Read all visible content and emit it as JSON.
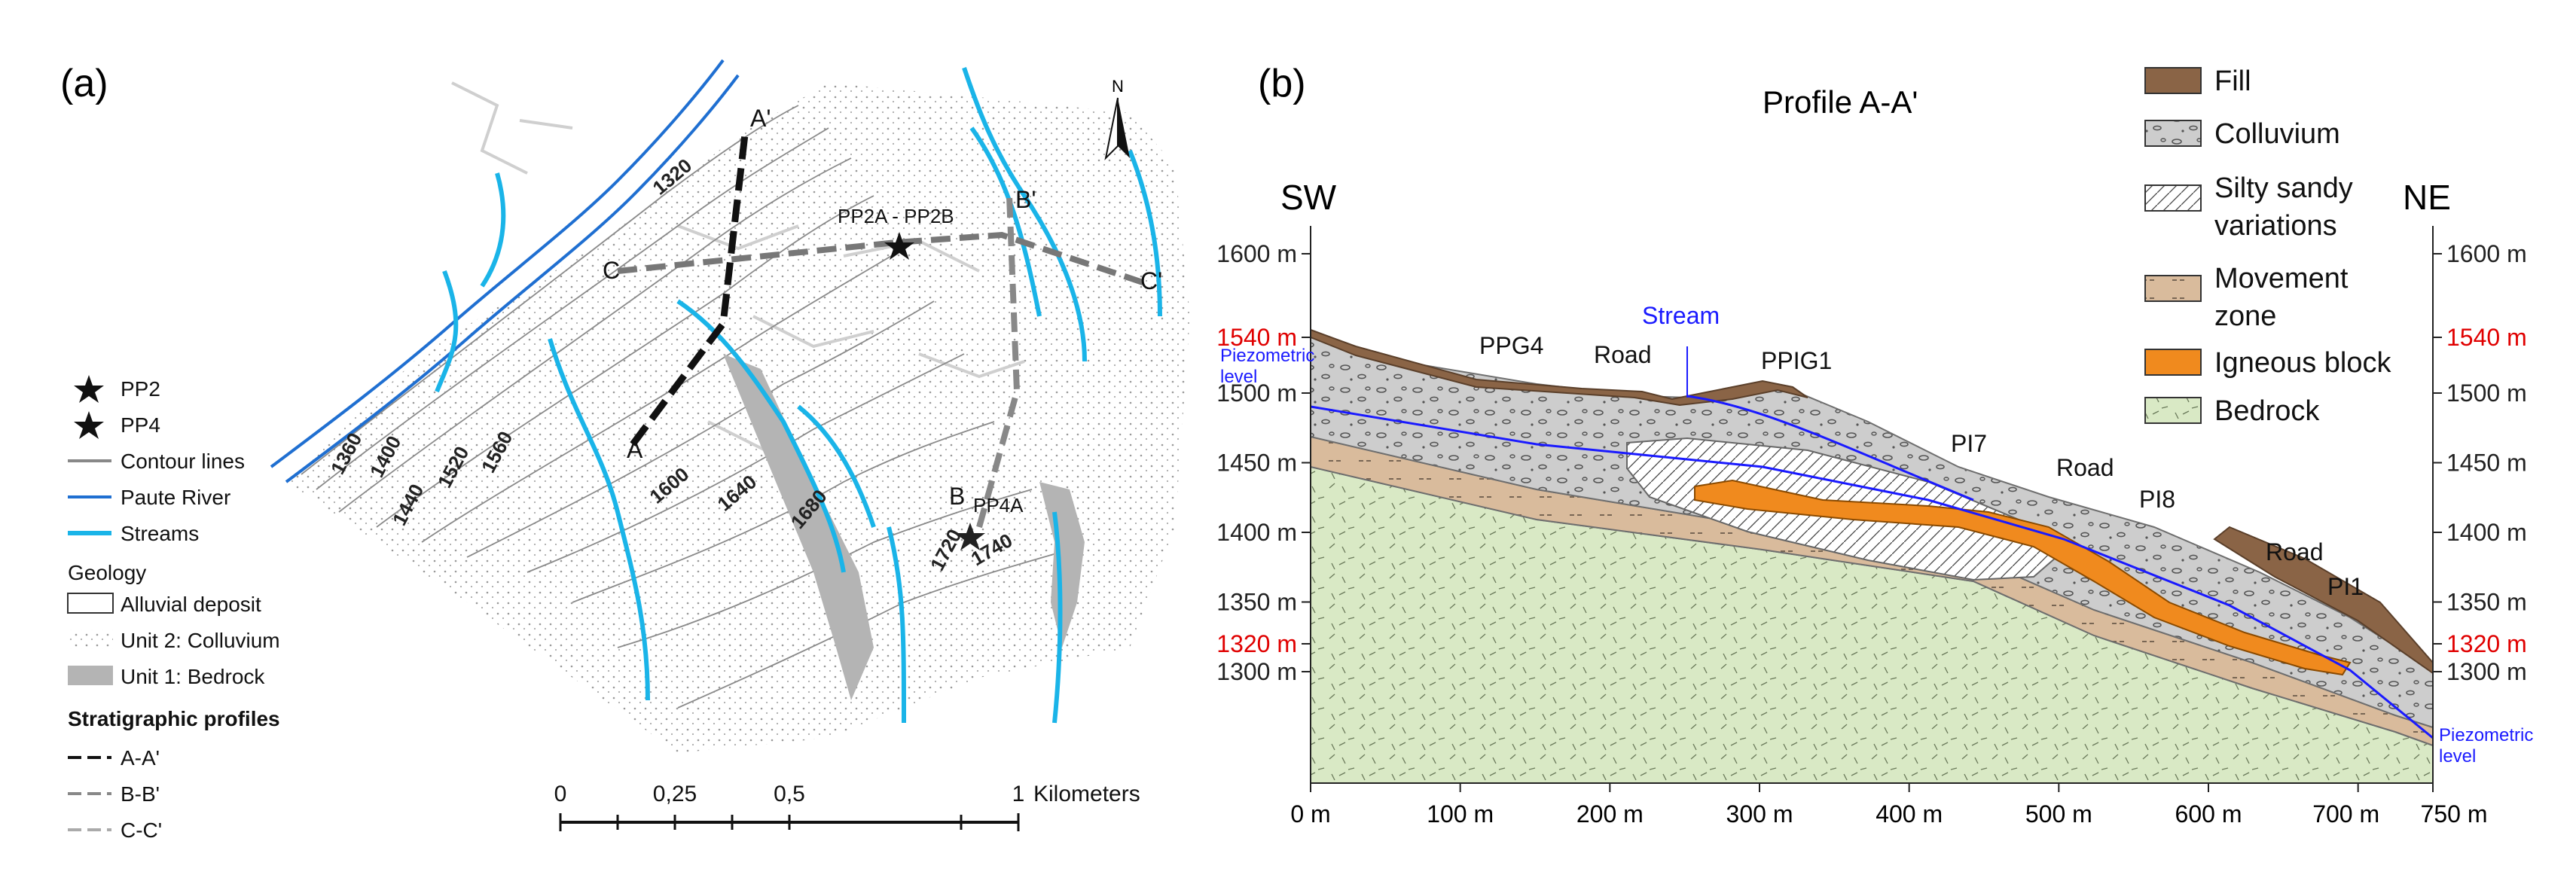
{
  "panel_a": {
    "label": "(a)",
    "north_label": "N",
    "legend": {
      "items": [
        "PP2",
        "PP4",
        "Contour lines",
        "Paute River",
        "Streams"
      ],
      "geology_title": "Geology",
      "geology_items": [
        "Alluvial deposit",
        "Unit 2: Colluvium",
        "Unit 1: Bedrock"
      ],
      "profiles_title": "Stratigraphic profiles",
      "profile_items": [
        "A-A'",
        "B-B'",
        "C-C'"
      ]
    },
    "contour_labels": [
      "1320",
      "1360",
      "1400",
      "1440",
      "1520",
      "1560",
      "1600",
      "1640",
      "1680",
      "1720",
      "1740"
    ],
    "point_labels": [
      "A'",
      "A",
      "B'",
      "B",
      "C",
      "C'",
      "PP2A - PP2B",
      "PP4A"
    ],
    "scale": {
      "ticks": [
        "0",
        "0,25",
        "0,5",
        "1"
      ],
      "unit": "Kilometers"
    },
    "colors": {
      "river": "#1f6fd1",
      "stream": "#1ab4e8",
      "bedrock": "#b4b4b4",
      "contour": "#8a8a8a"
    }
  },
  "panel_b": {
    "label": "(b)",
    "title": "Profile A-A'",
    "direction_left": "SW",
    "direction_right": "NE",
    "elevation_ticks": [
      "1300 m",
      "1320 m",
      "1350 m",
      "1400 m",
      "1450 m",
      "1500 m",
      "1540 m",
      "1600 m"
    ],
    "highlight_ticks": [
      "1320 m",
      "1540 m"
    ],
    "distance_ticks": [
      "0 m",
      "100 m",
      "200 m",
      "300 m",
      "400 m",
      "500 m",
      "600 m",
      "700 m",
      "750 m"
    ],
    "annotations": {
      "piezometric_left": [
        "Piezometric",
        "level"
      ],
      "piezometric_right": [
        "Piezometric",
        "level"
      ],
      "stream": "Stream",
      "ppg4": "PPG4",
      "road1": "Road",
      "ppig1": "PPIG1",
      "pi7": "PI7",
      "road2": "Road",
      "pi8": "PI8",
      "road3": "Road",
      "pi1": "PI1"
    },
    "legend": [
      {
        "label": [
          "Fill"
        ],
        "color": "#8a6446"
      },
      {
        "label": [
          "Colluvium"
        ],
        "color": "#cfcfcf"
      },
      {
        "label": [
          "Silty sandy",
          "variations"
        ],
        "color": "#ffffff"
      },
      {
        "label": [
          "Movement",
          "zone"
        ],
        "color": "#d7b99b"
      },
      {
        "label": [
          "Igneous block"
        ],
        "color": "#f08a1e"
      },
      {
        "label": [
          "Bedrock"
        ],
        "color": "#d8e8c4"
      }
    ],
    "colors": {
      "piezometric": "#1a1aff",
      "highlight": "#e00000"
    }
  }
}
